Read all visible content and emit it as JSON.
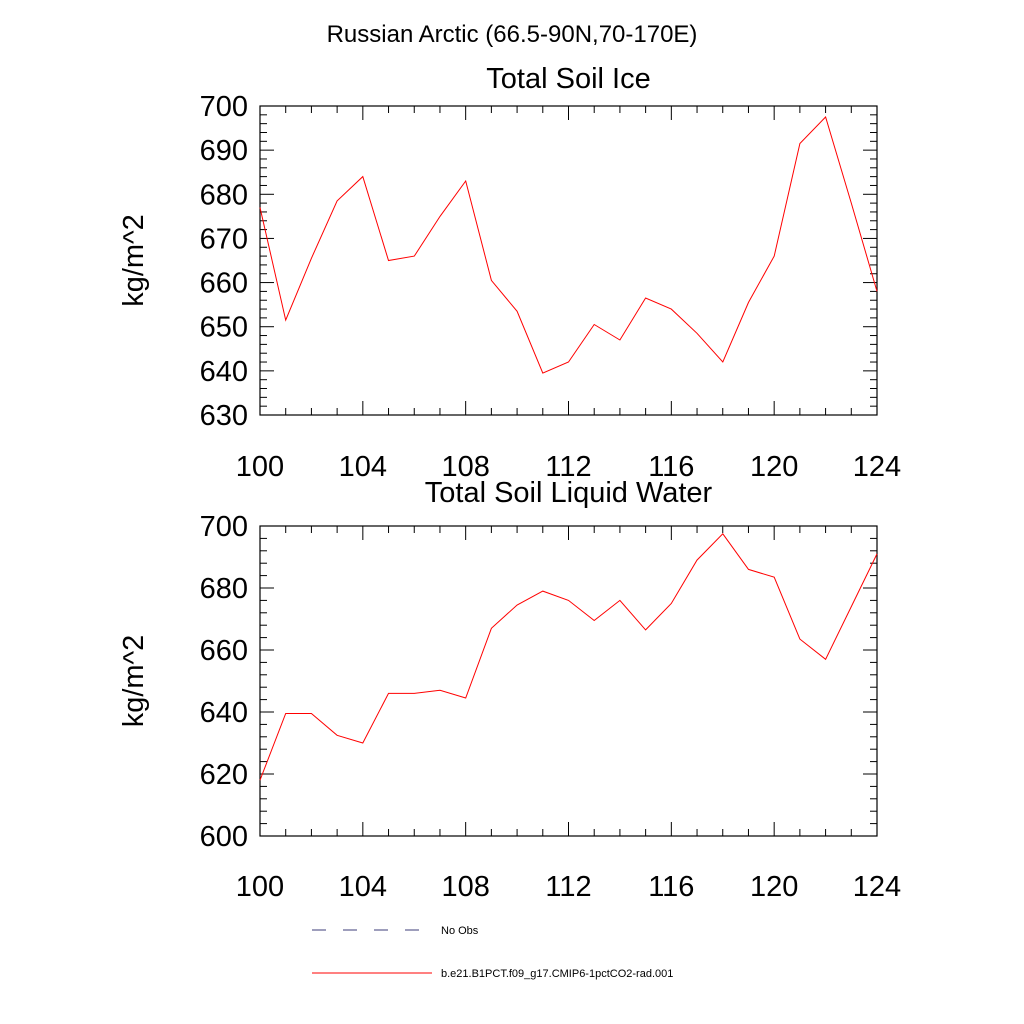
{
  "figure_title": "Russian Arctic (66.5-90N,70-170E)",
  "colors": {
    "model": "#ff0000",
    "obs": "#3c3c78"
  },
  "legend": [
    {
      "label": "No Obs",
      "style": "dashed",
      "color": "#3c3c78"
    },
    {
      "label": "b.e21.B1PCT.f09_g17.CMIP6-1pctCO2-rad.001",
      "style": "solid",
      "color": "#ff0000"
    }
  ],
  "chart_data": [
    {
      "type": "line",
      "title": "Total Soil Ice",
      "xlabel": "",
      "ylabel": "kg/m^2",
      "xlim": [
        100,
        124
      ],
      "ylim": [
        630,
        700
      ],
      "xticks": [
        100,
        104,
        108,
        112,
        116,
        120,
        124
      ],
      "yticks": [
        630,
        640,
        650,
        660,
        670,
        680,
        690,
        700
      ],
      "x": [
        100,
        101,
        102,
        103,
        104,
        105,
        106,
        107,
        108,
        109,
        110,
        111,
        112,
        113,
        114,
        115,
        116,
        117,
        118,
        119,
        120,
        121,
        122,
        123,
        124
      ],
      "series": [
        {
          "values": [
            677,
            651.5,
            665.5,
            678.5,
            684,
            665,
            666,
            675,
            683,
            660.5,
            653.5,
            639.5,
            642,
            650.5,
            647,
            656.5,
            654,
            648.5,
            642,
            655.5,
            666,
            691.5,
            697.5,
            678,
            658
          ]
        }
      ]
    },
    {
      "type": "line",
      "title": "Total Soil Liquid Water",
      "xlabel": "",
      "ylabel": "kg/m^2",
      "xlim": [
        100,
        124
      ],
      "ylim": [
        600,
        700
      ],
      "xticks": [
        100,
        104,
        108,
        112,
        116,
        120,
        124
      ],
      "yticks": [
        600,
        620,
        640,
        660,
        680,
        700
      ],
      "x": [
        100,
        101,
        102,
        103,
        104,
        105,
        106,
        107,
        108,
        109,
        110,
        111,
        112,
        113,
        114,
        115,
        116,
        117,
        118,
        119,
        120,
        121,
        122,
        123,
        124
      ],
      "series": [
        {
          "values": [
            618,
            639.5,
            639.5,
            632.5,
            630,
            646,
            646,
            647,
            644.5,
            667,
            674.5,
            679,
            676,
            669.5,
            676,
            666.5,
            675,
            689,
            697.5,
            686,
            683.5,
            663.5,
            657,
            674,
            691
          ]
        }
      ]
    }
  ]
}
